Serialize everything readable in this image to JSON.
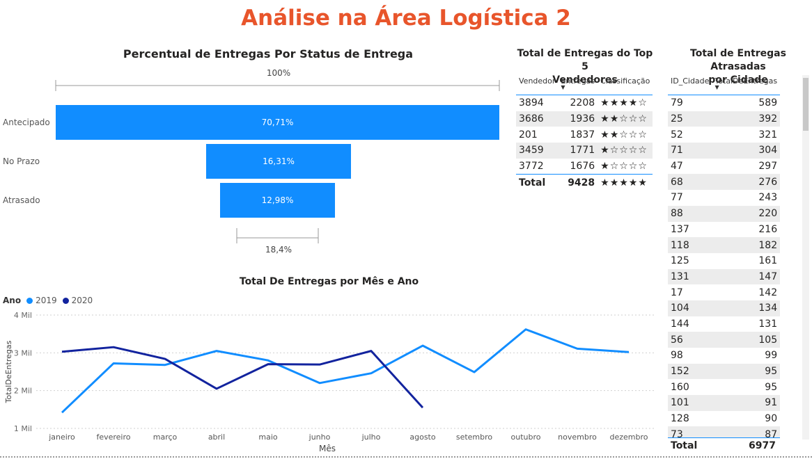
{
  "page_title": "Análise na Área Logística 2",
  "funnel": {
    "title": "Percentual de Entregas Por Status de Entrega",
    "top_scale_label": "100%",
    "bottom_scale_label": "18,4%",
    "categories": [
      "Antecipado",
      "No Prazo",
      "Atrasado"
    ],
    "value_labels": [
      "70,71%",
      "16,31%",
      "12,98%"
    ],
    "values": [
      70.71,
      16.31,
      12.98
    ],
    "bar_color": "#118dff"
  },
  "sellers": {
    "title_line1": "Total de Entregas do Top 5",
    "title_line2": "Vendedores",
    "headers": [
      "Vendedor",
      "Entregas",
      "Classificação"
    ],
    "rows": [
      {
        "vendedor": "3894",
        "entregas": "2208",
        "stars": "★★★★☆"
      },
      {
        "vendedor": "3686",
        "entregas": "1936",
        "stars": "★★☆☆☆"
      },
      {
        "vendedor": "201",
        "entregas": "1837",
        "stars": "★★☆☆☆"
      },
      {
        "vendedor": "3459",
        "entregas": "1771",
        "stars": "★☆☆☆☆"
      },
      {
        "vendedor": "3772",
        "entregas": "1676",
        "stars": "★☆☆☆☆"
      }
    ],
    "total_label": "Total",
    "total_value": "9428",
    "total_stars": "★★★★★"
  },
  "cities": {
    "title_line1": "Total de Entregas Atrasadas",
    "title_line2": "por Cidade",
    "headers": [
      "ID_Cidade",
      "TotalDeEntregas"
    ],
    "rows": [
      [
        "79",
        "589"
      ],
      [
        "25",
        "392"
      ],
      [
        "52",
        "321"
      ],
      [
        "71",
        "304"
      ],
      [
        "47",
        "297"
      ],
      [
        "68",
        "276"
      ],
      [
        "77",
        "243"
      ],
      [
        "88",
        "220"
      ],
      [
        "137",
        "216"
      ],
      [
        "118",
        "182"
      ],
      [
        "125",
        "161"
      ],
      [
        "131",
        "147"
      ],
      [
        "17",
        "142"
      ],
      [
        "104",
        "134"
      ],
      [
        "144",
        "131"
      ],
      [
        "56",
        "105"
      ],
      [
        "98",
        "99"
      ],
      [
        "152",
        "95"
      ],
      [
        "160",
        "95"
      ],
      [
        "101",
        "91"
      ],
      [
        "128",
        "90"
      ],
      [
        "73",
        "87"
      ]
    ],
    "total_label": "Total",
    "total_value": "6977"
  },
  "chart_data": {
    "type": "line",
    "title": "Total De Entregas por Mês e Ano",
    "legend_title": "Ano",
    "legend_position": "top-left",
    "xlabel": "Mês",
    "ylabel": "TotalDeEntregas",
    "categories": [
      "janeiro",
      "fevereiro",
      "março",
      "abril",
      "maio",
      "junho",
      "julho",
      "agosto",
      "setembro",
      "outubro",
      "novembro",
      "dezembro"
    ],
    "ylim": [
      1000,
      4000
    ],
    "y_ticks": [
      1000,
      2000,
      3000,
      4000
    ],
    "y_tick_labels": [
      "1 Mil",
      "2 Mil",
      "3 Mil",
      "4 Mil"
    ],
    "grid": true,
    "series": [
      {
        "name": "2019",
        "color": "#118dff",
        "values": [
          1420,
          2720,
          2680,
          3050,
          2800,
          2200,
          2460,
          3190,
          2490,
          3620,
          3110,
          3020
        ]
      },
      {
        "name": "2020",
        "color": "#12239e",
        "values": [
          3030,
          3150,
          2840,
          2050,
          2700,
          2690,
          3050,
          1550,
          null,
          null,
          null,
          null
        ]
      }
    ]
  }
}
